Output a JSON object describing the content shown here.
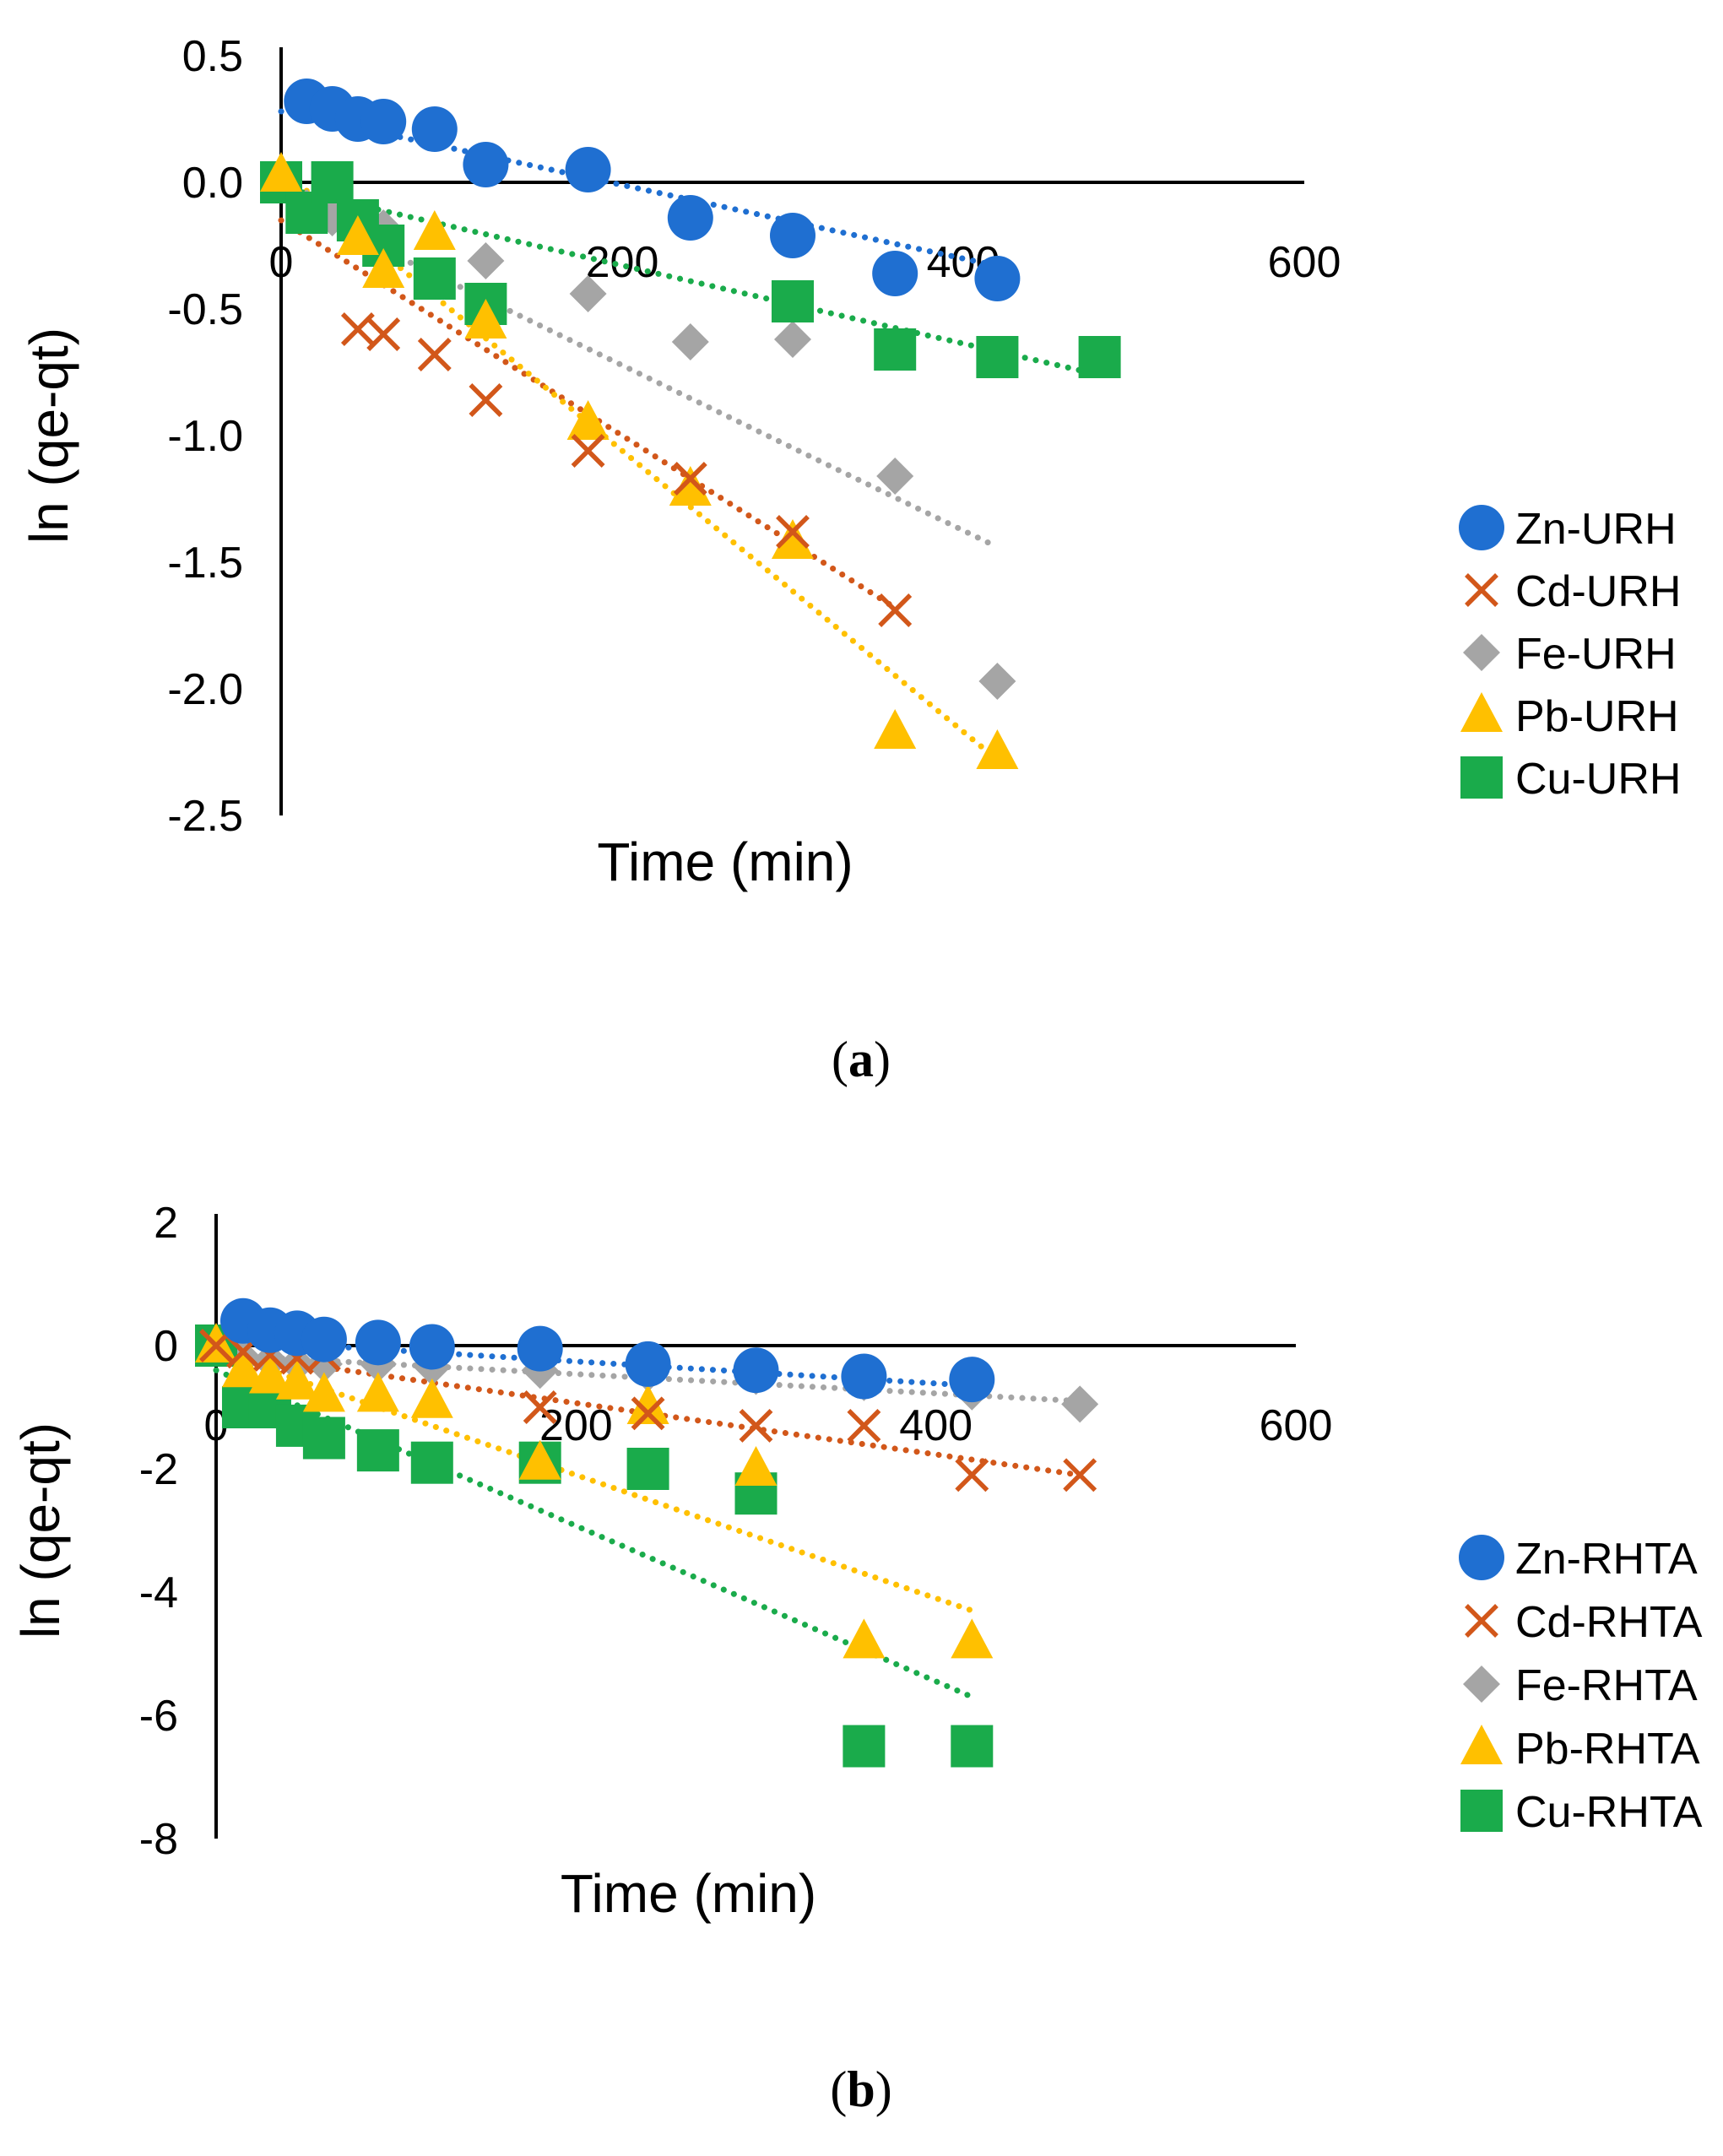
{
  "chart_data": [
    {
      "type": "scatter",
      "panel_label": "a",
      "xlabel": "Time (min)",
      "ylabel": "ln (qe-qt)",
      "xlim": [
        0,
        600
      ],
      "ylim": [
        -2.5,
        0.5
      ],
      "x_ticks": [
        "0",
        "200",
        "400",
        "600"
      ],
      "y_ticks": [
        "0.5",
        "0.0",
        "-0.5",
        "-1.0",
        "-1.5",
        "-2.0",
        "-2.5"
      ],
      "trendline": "linear, dotted",
      "legend_position": "right",
      "series": [
        {
          "name": "Zn-URH",
          "color": "#1f6fd1",
          "marker": "circle",
          "x": [
            15,
            30,
            45,
            60,
            90,
            120,
            180,
            240,
            300,
            360,
            420
          ],
          "y": [
            0.32,
            0.29,
            0.25,
            0.24,
            0.21,
            0.07,
            0.05,
            -0.14,
            -0.21,
            -0.36,
            -0.38
          ],
          "trend": [
            [
              0,
              0.28
            ],
            [
              420,
              -0.33
            ]
          ]
        },
        {
          "name": "Cd-URH",
          "color": "#d2571a",
          "marker": "x",
          "x": [
            45,
            60,
            90,
            120,
            180,
            240,
            300,
            360
          ],
          "y": [
            -0.58,
            -0.6,
            -0.68,
            -0.86,
            -1.06,
            -1.17,
            -1.38,
            -1.69
          ],
          "trend": [
            [
              0,
              -0.15
            ],
            [
              360,
              -1.68
            ]
          ]
        },
        {
          "name": "Fe-URH",
          "color": "#a5a5a5",
          "marker": "diamond",
          "x": [
            15,
            30,
            60,
            120,
            180,
            240,
            300,
            360,
            420
          ],
          "y": [
            -0.1,
            -0.14,
            -0.18,
            -0.31,
            -0.44,
            -0.63,
            -0.62,
            -1.16,
            -1.97
          ],
          "trend": [
            [
              0,
              -0.07
            ],
            [
              420,
              -1.44
            ]
          ]
        },
        {
          "name": "Pb-URH",
          "color": "#ffc000",
          "marker": "triangle",
          "x": [
            0,
            45,
            60,
            90,
            120,
            180,
            240,
            300,
            360,
            420
          ],
          "y": [
            0.03,
            -0.22,
            -0.35,
            -0.2,
            -0.55,
            -0.95,
            -1.21,
            -1.42,
            -2.17,
            -2.25
          ],
          "trend": [
            [
              0,
              0.05
            ],
            [
              420,
              -2.28
            ]
          ]
        },
        {
          "name": "Cu-URH",
          "color": "#1aab4b",
          "marker": "square",
          "x": [
            0,
            15,
            30,
            45,
            60,
            90,
            120,
            300,
            360,
            420,
            480
          ],
          "y": [
            0.0,
            -0.12,
            0.0,
            -0.15,
            -0.25,
            -0.38,
            -0.48,
            -0.47,
            -0.66,
            -0.69,
            -0.69
          ],
          "trend": [
            [
              0,
              -0.02
            ],
            [
              480,
              -0.76
            ]
          ]
        }
      ]
    },
    {
      "type": "scatter",
      "panel_label": "b",
      "xlabel": "Time (min)",
      "ylabel": "ln (qe-qt)",
      "xlim": [
        0,
        600
      ],
      "ylim": [
        -8,
        2
      ],
      "x_ticks": [
        "0",
        "200",
        "400",
        "600"
      ],
      "y_ticks": [
        "2",
        "0",
        "-2",
        "-4",
        "-6",
        "-8"
      ],
      "trendline": "linear, dotted",
      "legend_position": "right",
      "series": [
        {
          "name": "Zn-RHTA",
          "color": "#1f6fd1",
          "marker": "circle",
          "x": [
            15,
            30,
            45,
            60,
            90,
            120,
            180,
            240,
            300,
            360,
            420
          ],
          "y": [
            0.4,
            0.25,
            0.2,
            0.1,
            0.05,
            -0.02,
            -0.05,
            -0.3,
            -0.4,
            -0.5,
            -0.55
          ],
          "trend": [
            [
              0,
              0.1
            ],
            [
              420,
              -0.65
            ]
          ]
        },
        {
          "name": "Cd-RHTA",
          "color": "#d2571a",
          "marker": "x",
          "x": [
            0,
            15,
            30,
            45,
            60,
            180,
            240,
            300,
            360,
            420,
            480
          ],
          "y": [
            0.0,
            -0.1,
            -0.15,
            -0.2,
            -0.15,
            -1.0,
            -1.1,
            -1.3,
            -1.3,
            -2.1,
            -2.1
          ],
          "trend": [
            [
              0,
              -0.1
            ],
            [
              480,
              -2.1
            ]
          ]
        },
        {
          "name": "Fe-RHTA",
          "color": "#a5a5a5",
          "marker": "diamond",
          "x": [
            15,
            30,
            45,
            60,
            90,
            120,
            180,
            240,
            300,
            360,
            420,
            480
          ],
          "y": [
            -0.2,
            -0.25,
            -0.3,
            -0.3,
            -0.3,
            -0.35,
            -0.4,
            -0.45,
            -0.5,
            -0.6,
            -0.75,
            -0.95
          ],
          "trend": [
            [
              0,
              -0.15
            ],
            [
              480,
              -0.9
            ]
          ]
        },
        {
          "name": "Pb-RHTA",
          "color": "#ffc000",
          "marker": "triangle",
          "x": [
            0,
            15,
            30,
            45,
            60,
            90,
            120,
            180,
            240,
            300,
            360,
            420
          ],
          "y": [
            0.0,
            -0.4,
            -0.5,
            -0.6,
            -0.8,
            -0.8,
            -0.9,
            -1.9,
            -1.0,
            -2.0,
            -4.8,
            -4.8
          ],
          "trend": [
            [
              0,
              -0.1
            ],
            [
              420,
              -4.3
            ]
          ]
        },
        {
          "name": "Cu-RHTA",
          "color": "#1aab4b",
          "marker": "square",
          "x": [
            0,
            15,
            30,
            45,
            60,
            90,
            120,
            180,
            240,
            300,
            360,
            420
          ],
          "y": [
            0.0,
            -1.0,
            -1.0,
            -1.3,
            -1.5,
            -1.7,
            -1.9,
            -1.9,
            -2.0,
            -2.4,
            -6.5,
            -6.5
          ],
          "trend": [
            [
              0,
              -0.4
            ],
            [
              420,
              -5.7
            ]
          ]
        }
      ]
    }
  ]
}
